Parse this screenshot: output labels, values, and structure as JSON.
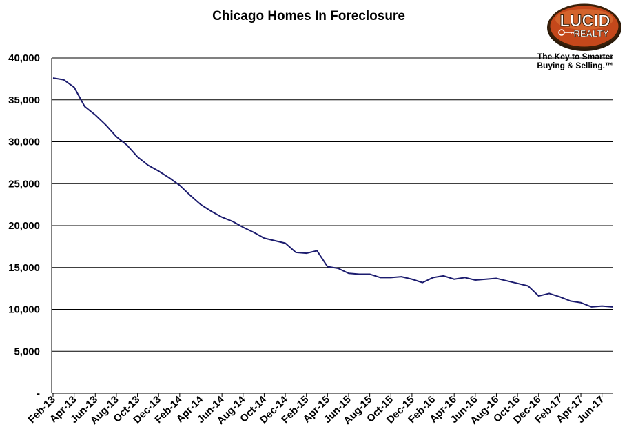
{
  "logo": {
    "word1": "LUCID",
    "word2": "REALTY",
    "tagline_line1": "The Key to Smarter",
    "tagline_line2": "Buying & Selling.™"
  },
  "chart_data": {
    "type": "line",
    "title": "Chicago Homes In Foreclosure",
    "xlabel": "",
    "ylabel": "",
    "ylim": [
      0,
      40000
    ],
    "yticks": [
      0,
      5000,
      10000,
      15000,
      20000,
      25000,
      30000,
      35000,
      40000
    ],
    "ytick_labels": [
      "-",
      "5,000",
      "10,000",
      "15,000",
      "20,000",
      "25,000",
      "30,000",
      "35,000",
      "40,000"
    ],
    "grid": "horizontal",
    "legend": "none",
    "line_color": "#1b1b6e",
    "x": [
      "Feb-13",
      "Mar-13",
      "Apr-13",
      "May-13",
      "Jun-13",
      "Jul-13",
      "Aug-13",
      "Sep-13",
      "Oct-13",
      "Nov-13",
      "Dec-13",
      "Jan-14",
      "Feb-14",
      "Mar-14",
      "Apr-14",
      "May-14",
      "Jun-14",
      "Jul-14",
      "Aug-14",
      "Sep-14",
      "Oct-14",
      "Nov-14",
      "Dec-14",
      "Jan-15",
      "Feb-15",
      "Mar-15",
      "Apr-15",
      "May-15",
      "Jun-15",
      "Jul-15",
      "Aug-15",
      "Sep-15",
      "Oct-15",
      "Nov-15",
      "Dec-15",
      "Jan-16",
      "Feb-16",
      "Mar-16",
      "Apr-16",
      "May-16",
      "Jun-16",
      "Jul-16",
      "Aug-16",
      "Sep-16",
      "Oct-16",
      "Nov-16",
      "Dec-16",
      "Jan-17",
      "Feb-17",
      "Mar-17",
      "Apr-17",
      "May-17",
      "Jun-17",
      "Jul-17"
    ],
    "xtick_labels": [
      "Feb-13",
      "Apr-13",
      "Jun-13",
      "Aug-13",
      "Oct-13",
      "Dec-13",
      "Feb-14",
      "Apr-14",
      "Jun-14",
      "Aug-14",
      "Oct-14",
      "Dec-14",
      "Feb-15",
      "Apr-15",
      "Jun-15",
      "Aug-15",
      "Oct-15",
      "Dec-15",
      "Feb-16",
      "Apr-16",
      "Jun-16",
      "Aug-16",
      "Oct-16",
      "Dec-16",
      "Feb-17",
      "Apr-17",
      "Jun-17"
    ],
    "series": [
      {
        "values": [
          37600,
          37400,
          36500,
          34200,
          33200,
          32000,
          30600,
          29600,
          28200,
          27200,
          26500,
          25700,
          24800,
          23600,
          22500,
          21700,
          21000,
          20500,
          19800,
          19200,
          18500,
          18200,
          17900,
          16800,
          16700,
          17000,
          15100,
          14900,
          14300,
          14200,
          14200,
          13800,
          13800,
          13900,
          13600,
          13200,
          13800,
          14000,
          13600,
          13800,
          13500,
          13600,
          13700,
          13400,
          13100,
          12800,
          11600,
          11900,
          11500,
          11000,
          10800,
          10300,
          10400,
          10300
        ]
      }
    ]
  }
}
